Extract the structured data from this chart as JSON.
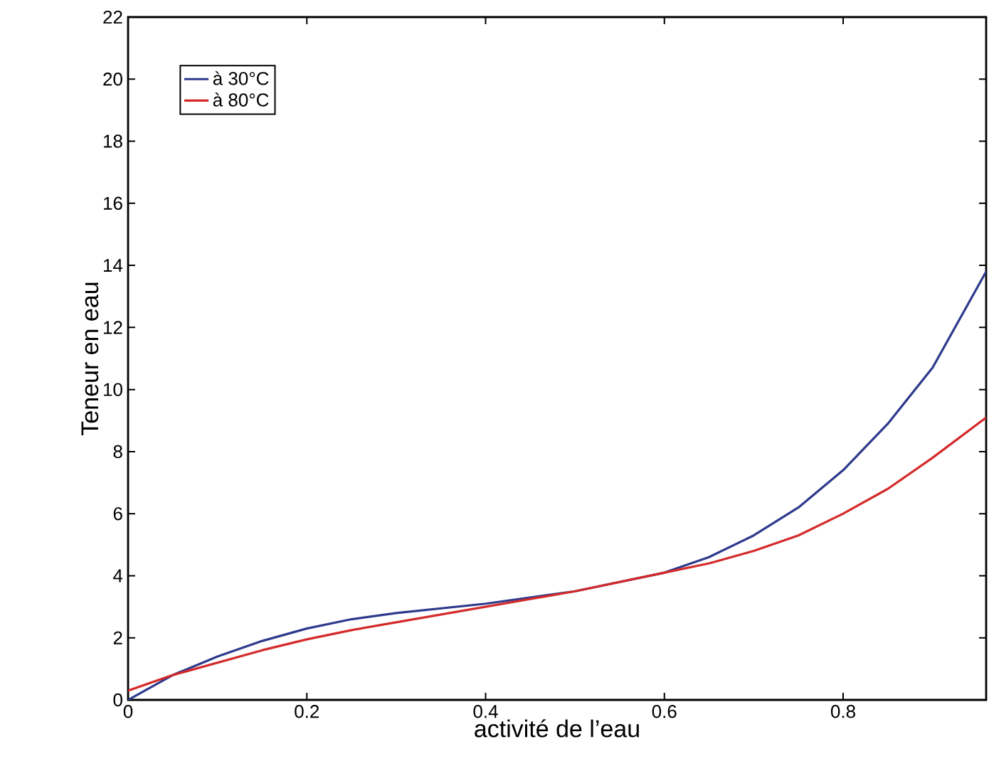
{
  "chart_data": {
    "type": "line",
    "xlabel": "activité de l’eau",
    "ylabel": "Teneur en eau",
    "xlim": [
      0,
      0.96
    ],
    "ylim": [
      0,
      22
    ],
    "xticks": [
      0,
      0.2,
      0.4,
      0.6,
      0.8
    ],
    "yticks": [
      0,
      2,
      4,
      6,
      8,
      10,
      12,
      14,
      16,
      18,
      20,
      22
    ],
    "grid": false,
    "legend": "top left",
    "marker": "none",
    "line_style": "solid",
    "x": [
      0,
      0.05,
      0.1,
      0.15,
      0.2,
      0.25,
      0.3,
      0.4,
      0.5,
      0.6,
      0.65,
      0.7,
      0.75,
      0.8,
      0.85,
      0.9,
      0.96
    ],
    "series": [
      {
        "name": "à 30°C",
        "color": "#2e3a8c",
        "values": [
          0,
          0.8,
          1.4,
          1.9,
          2.3,
          2.6,
          2.8,
          3.1,
          3.5,
          4.1,
          4.6,
          5.3,
          6.2,
          7.4,
          8.9,
          10.7,
          13.8
        ]
      },
      {
        "name": "à 80°C",
        "color": "#d42a2a",
        "values": [
          0.3,
          0.8,
          1.2,
          1.6,
          1.95,
          2.25,
          2.5,
          3.0,
          3.5,
          4.1,
          4.4,
          4.8,
          5.3,
          6.0,
          6.8,
          7.8,
          9.1
        ]
      }
    ]
  }
}
